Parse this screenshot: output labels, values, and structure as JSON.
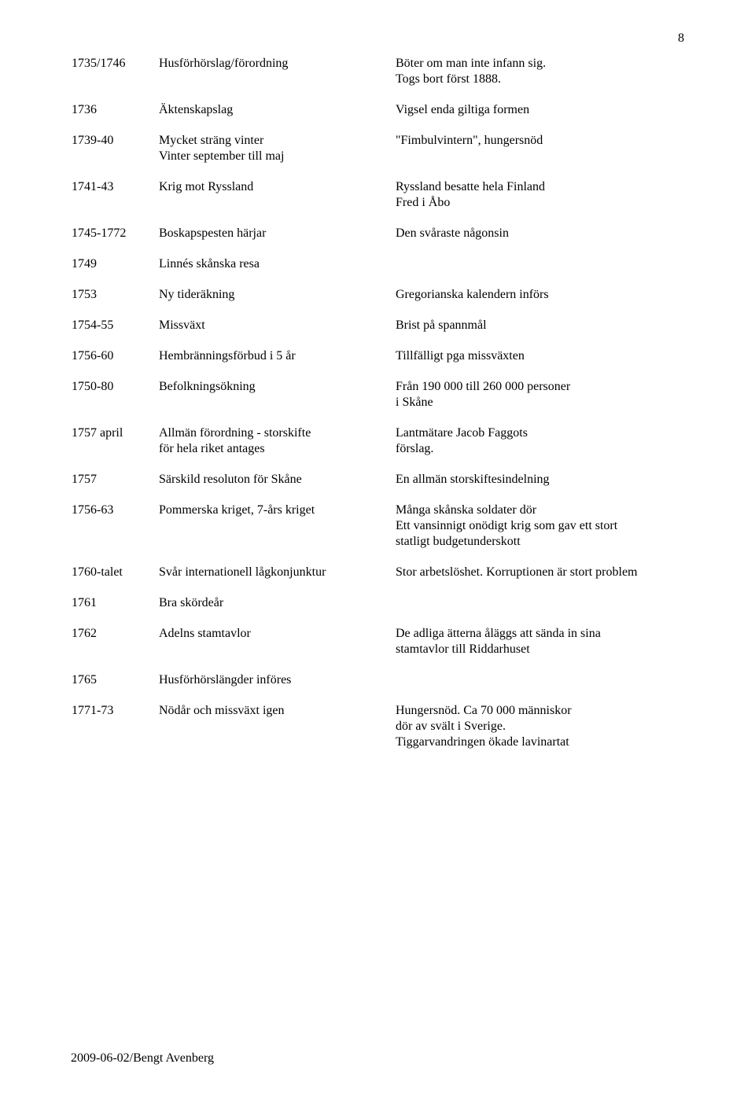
{
  "page_number": "8",
  "footer": "2009-06-02/Bengt Avenberg",
  "rows": [
    {
      "year": "1735/1746",
      "event": "Husförhörslag/förordning",
      "note": "Böter om man inte infann sig.\nTogs bort först 1888."
    },
    {
      "year": "1736",
      "event": "Äktenskapslag",
      "note": "Vigsel enda giltiga formen"
    },
    {
      "year": "1739-40",
      "event": "Mycket sträng vinter\nVinter september till maj",
      "note": "\"Fimbulvintern\", hungersnöd"
    },
    {
      "year": "1741-43",
      "event": "Krig mot Ryssland",
      "note": "Ryssland besatte hela Finland\nFred i Åbo"
    },
    {
      "year": "1745-1772",
      "event": "Boskapspesten härjar",
      "note": "Den svåraste någonsin"
    },
    {
      "year": "1749",
      "event": "Linnés skånska resa",
      "note": ""
    },
    {
      "year": "1753",
      "event": "Ny tideräkning",
      "note": "Gregorianska kalendern införs"
    },
    {
      "year": "1754-55",
      "event": "Missväxt",
      "note": "Brist på spannmål"
    },
    {
      "year": "1756-60",
      "event": "Hembränningsförbud i 5 år",
      "note": "Tillfälligt pga  missväxten"
    },
    {
      "year": "1750-80",
      "event": "Befolkningsökning",
      "note": "Från 190 000 till 260 000 personer\ni Skåne"
    },
    {
      "year": "1757 april",
      "event": "Allmän förordning - storskifte\nför hela riket antages",
      "note": "Lantmätare Jacob Faggots\nförslag."
    },
    {
      "year": "1757",
      "event": "Särskild resoluton för Skåne",
      "note": "En allmän storskiftesindelning"
    },
    {
      "year": "1756-63",
      "event": "Pommerska kriget, 7-års kriget",
      "note": "Många skånska soldater dör\nEtt vansinnigt onödigt krig som gav ett stort\nstatligt budgetunderskott"
    },
    {
      "year": "1760-talet",
      "event": "Svår internationell lågkonjunktur",
      "note": "Stor arbetslöshet. Korruptionen är stort problem"
    },
    {
      "year": "1761",
      "event": "Bra skördeår",
      "note": ""
    },
    {
      "year": "1762",
      "event": "Adelns stamtavlor",
      "note": "De adliga ätterna åläggs att sända in sina\nstamtavlor till Riddarhuset"
    },
    {
      "year": "1765",
      "event": "Husförhörslängder införes",
      "note": ""
    },
    {
      "year": "1771-73",
      "event": "Nödår och missväxt igen",
      "note": "Hungersnöd. Ca 70 000 människor\ndör av svält i Sverige.\nTiggarvandringen ökade lavinartat"
    }
  ]
}
